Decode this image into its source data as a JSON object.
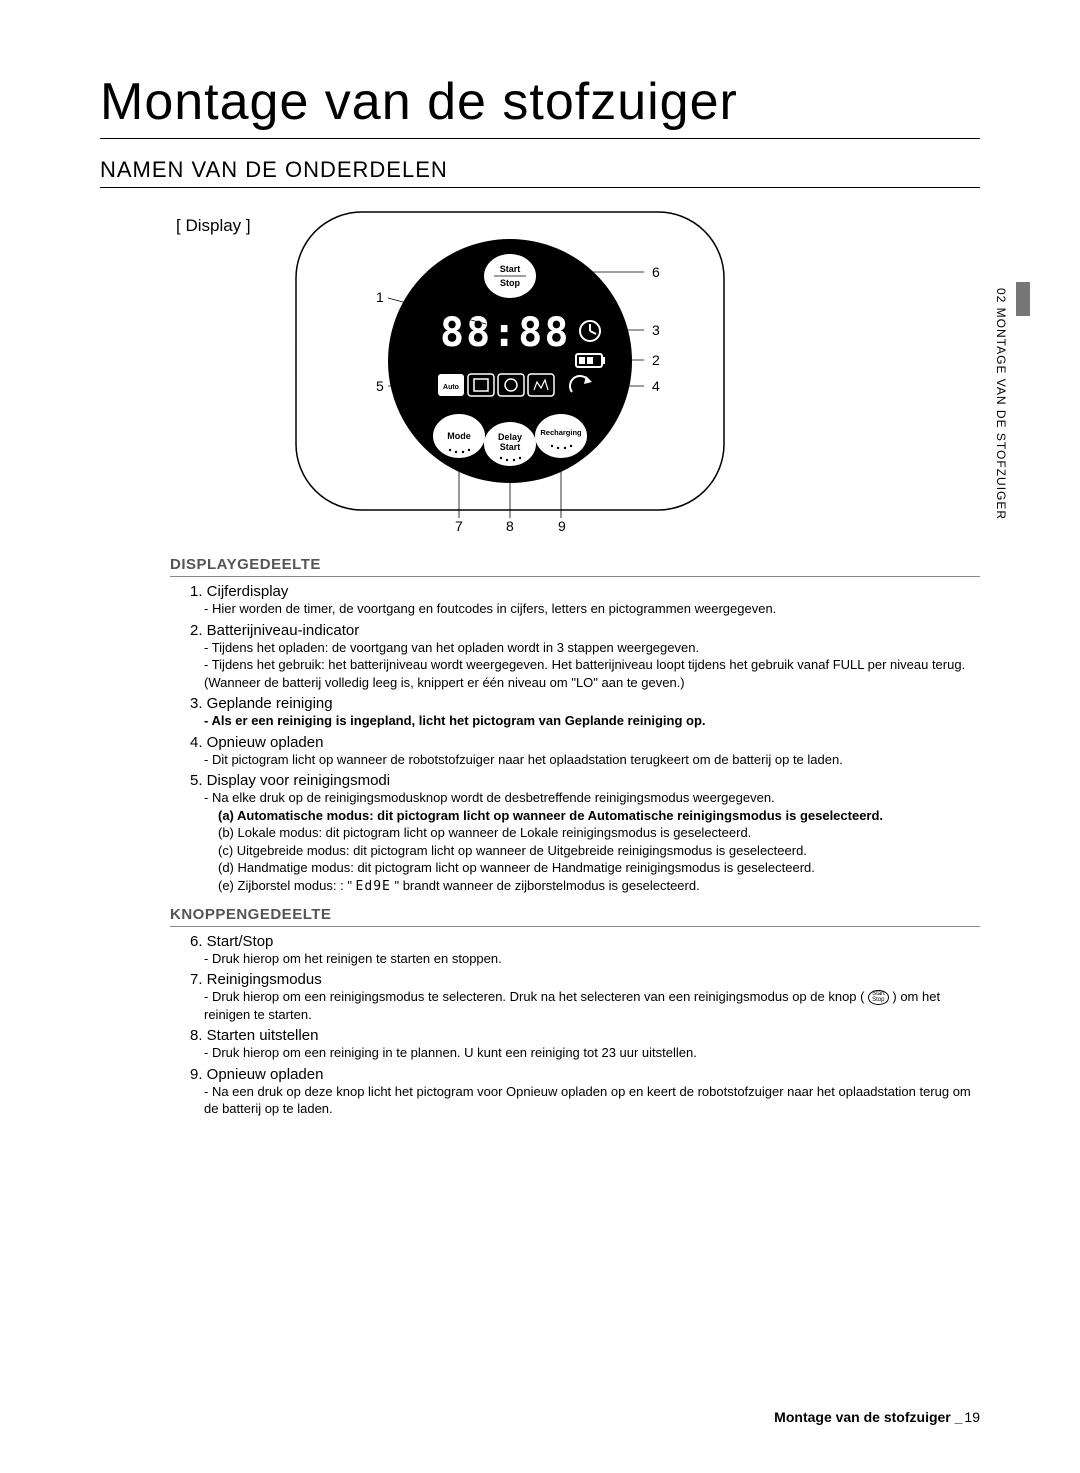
{
  "mainTitle": "Montage van de stofzuiger",
  "sectionTitle": "NAMEN VAN DE ONDERDELEN",
  "sideTab": "02  MONTAGE VAN DE STOFZUIGER",
  "diagram": {
    "displayLabel": "[ Display ]",
    "labels": {
      "startStop": "Start\nStop",
      "mode": "Mode",
      "delayStart": "Delay\nStart",
      "recharging": "Recharging",
      "auto": "Auto"
    },
    "numbers": [
      "1",
      "2",
      "3",
      "4",
      "5",
      "6",
      "7",
      "8",
      "9"
    ]
  },
  "displaySection": {
    "heading": "DISPLAYGEDEELTE",
    "items": [
      {
        "num": "1.",
        "title": "Cijferdisplay",
        "descs": [
          {
            "text": "- Hier worden de timer, de voortgang en foutcodes in cijfers, letters en pictogrammen weergegeven."
          }
        ]
      },
      {
        "num": "2.",
        "title": "Batterijniveau-indicator",
        "descs": [
          {
            "text": "- Tijdens het opladen: de voortgang van het opladen wordt in 3 stappen weergegeven."
          },
          {
            "text": "- Tijdens het gebruik: het batterijniveau wordt weergegeven. Het batterijniveau loopt tijdens het gebruik vanaf FULL per niveau terug. (Wanneer de batterij volledig leeg is, knippert er één niveau om \"LO\" aan te geven.)"
          }
        ]
      },
      {
        "num": "3.",
        "title": "Geplande reiniging",
        "descs": [
          {
            "text": "- Als er een reiniging is ingepland, licht het pictogram van Geplande reiniging op.",
            "bold": true
          }
        ]
      },
      {
        "num": "4.",
        "title": "Opnieuw opladen",
        "descs": [
          {
            "text": "- Dit pictogram licht op wanneer de robotstofzuiger naar het oplaadstation terugkeert om de batterij op te laden."
          }
        ]
      },
      {
        "num": "5.",
        "title": "Display voor reinigingsmodi",
        "descs": [
          {
            "text": "- Na elke druk op de reinigingsmodusknop wordt de desbetreffende reinigingsmodus weergegeven."
          }
        ],
        "sublist": [
          {
            "text": "(a) Automatische modus: dit pictogram licht op wanneer de Automatische reinigingsmodus is geselecteerd.",
            "bold": true
          },
          {
            "text": "(b) Lokale modus: dit pictogram licht op wanneer de Lokale reinigingsmodus is geselecteerd."
          },
          {
            "text": "(c) Uitgebreide modus: dit pictogram licht op wanneer de Uitgebreide reinigingsmodus is geselecteerd."
          },
          {
            "text": "(d) Handmatige modus: dit pictogram licht op wanneer de Handmatige reinigingsmodus is geselecteerd."
          },
          {
            "text": "(e) Zijborstel modus: : \" Ed9E \" brandt wanneer de zijborstelmodus is geselecteerd.",
            "edge": true
          }
        ]
      }
    ]
  },
  "buttonSection": {
    "heading": "KNOPPENGEDEELTE",
    "items": [
      {
        "num": "6.",
        "title": "Start/Stop",
        "descs": [
          {
            "text": "- Druk hierop om het reinigen te starten en stoppen."
          }
        ]
      },
      {
        "num": "7.",
        "title": "Reinigingsmodus",
        "descs": [
          {
            "text": "- Druk hierop om een reinigingsmodus te selecteren. Druk na het selecteren van een reinigingsmodus op de knop ( ",
            "hasIcon": true,
            "textAfter": " ) om het reinigen te starten."
          }
        ]
      },
      {
        "num": "8.",
        "title": "Starten uitstellen",
        "descs": [
          {
            "text": "- Druk hierop om een reiniging in te plannen. U kunt een reiniging tot 23 uur uitstellen."
          }
        ]
      },
      {
        "num": "9.",
        "title": "Opnieuw opladen",
        "descs": [
          {
            "text": "- Na een druk op deze knop licht het pictogram voor Opnieuw opladen op en keert de robotstofzuiger naar het oplaadstation terug om de batterij op te laden."
          }
        ]
      }
    ]
  },
  "footer": {
    "text": "Montage van de stofzuiger _",
    "page": "19"
  },
  "colors": {
    "black": "#000000",
    "gray": "#777777",
    "lightGray": "#888888",
    "textGray": "#555555"
  }
}
